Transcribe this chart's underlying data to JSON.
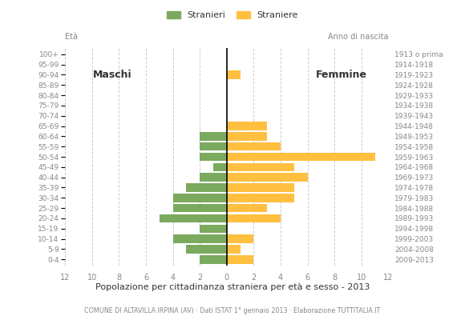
{
  "age_groups": [
    "0-4",
    "5-9",
    "10-14",
    "15-19",
    "20-24",
    "25-29",
    "30-34",
    "35-39",
    "40-44",
    "45-49",
    "50-54",
    "55-59",
    "60-64",
    "65-69",
    "70-74",
    "75-79",
    "80-84",
    "85-89",
    "90-94",
    "95-99",
    "100+"
  ],
  "birth_years": [
    "2009-2013",
    "2004-2008",
    "1999-2003",
    "1994-1998",
    "1989-1993",
    "1984-1988",
    "1979-1983",
    "1974-1978",
    "1969-1973",
    "1964-1968",
    "1959-1963",
    "1954-1958",
    "1949-1953",
    "1944-1948",
    "1939-1943",
    "1934-1938",
    "1929-1933",
    "1924-1928",
    "1919-1923",
    "1914-1918",
    "1913 o prima"
  ],
  "males": [
    2,
    3,
    4,
    2,
    5,
    4,
    4,
    3,
    2,
    1,
    2,
    2,
    2,
    0,
    0,
    0,
    0,
    0,
    0,
    0,
    0
  ],
  "females": [
    2,
    1,
    2,
    0,
    4,
    3,
    5,
    5,
    6,
    5,
    11,
    4,
    3,
    3,
    0,
    0,
    0,
    0,
    1,
    0,
    0
  ],
  "male_color": "#7aaa5e",
  "female_color": "#ffc040",
  "bar_height": 0.82,
  "title": "Popolazione per cittadinanza straniera per età e sesso - 2013",
  "subtitle": "COMUNE DI ALTAVILLA IRPINA (AV) · Dati ISTAT 1° gennaio 2013 · Elaborazione TUTTITALIA.IT",
  "legend_male": "Stranieri",
  "legend_female": "Straniere",
  "label_eta": "Età",
  "label_anno": "Anno di nascita",
  "label_maschi": "Maschi",
  "label_femmine": "Femmine",
  "xlim": 12,
  "grid_color": "#cccccc",
  "bg_color": "#ffffff",
  "text_color": "#888888",
  "label_color": "#333333"
}
